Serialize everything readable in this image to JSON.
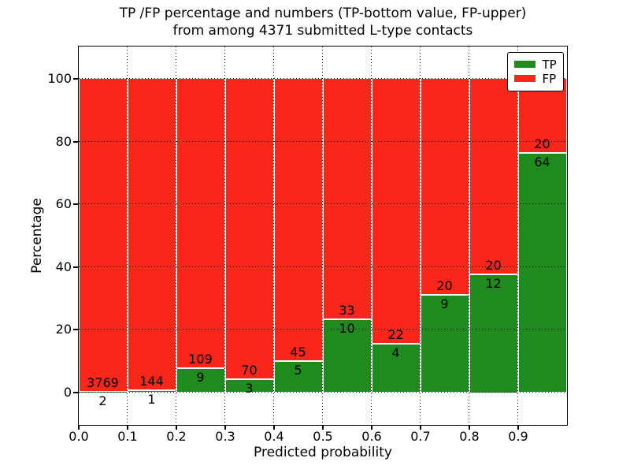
{
  "title": {
    "line1": "TP /FP percentage and numbers (TP-bottom value, FP-upper)",
    "line2": "from among 4371 submitted L-type contacts"
  },
  "axes": {
    "x_label": "Predicted probability",
    "y_label": "Percentage",
    "x_tick_labels": [
      "0.0",
      "0.1",
      "0.2",
      "0.3",
      "0.4",
      "0.5",
      "0.6",
      "0.7",
      "0.8",
      "0.9"
    ],
    "y_tick_labels": [
      "0",
      "20",
      "40",
      "60",
      "80",
      "100"
    ],
    "y_tick_values": [
      0,
      20,
      40,
      60,
      80,
      100
    ],
    "xlim": [
      0.0,
      1.0
    ],
    "ylim": [
      -10.5,
      110.5
    ]
  },
  "legend": {
    "items": [
      {
        "label": "TP",
        "color": "#1f8b1f"
      },
      {
        "label": "FP",
        "color": "#f9261a"
      }
    ],
    "position": "upper right"
  },
  "chart_data": {
    "type": "bar",
    "subtype": "stacked_percentage",
    "title": "TP /FP percentage and numbers (TP-bottom value, FP-upper) from among 4371 submitted L-type contacts",
    "xlabel": "Predicted probability",
    "ylabel": "Percentage",
    "bin_edges": [
      0.0,
      0.1,
      0.2,
      0.3,
      0.4,
      0.5,
      0.6,
      0.7,
      0.8,
      0.9,
      1.0
    ],
    "series": [
      {
        "name": "TP",
        "color": "#1f8b1f",
        "counts": [
          2,
          1,
          9,
          3,
          5,
          10,
          4,
          9,
          12,
          64
        ]
      },
      {
        "name": "FP",
        "color": "#f9261a",
        "counts": [
          3769,
          144,
          109,
          70,
          45,
          33,
          22,
          20,
          20,
          20
        ]
      }
    ],
    "tp_percent": [
      0.05,
      0.69,
      7.63,
      4.11,
      10.0,
      23.26,
      15.38,
      31.03,
      37.5,
      76.19
    ],
    "total_contacts": 4371,
    "grid": true,
    "gridstyle": "dotted",
    "legend_position": "upper right",
    "annotation_note": "FP count printed above TP/FP boundary, TP count below it"
  }
}
